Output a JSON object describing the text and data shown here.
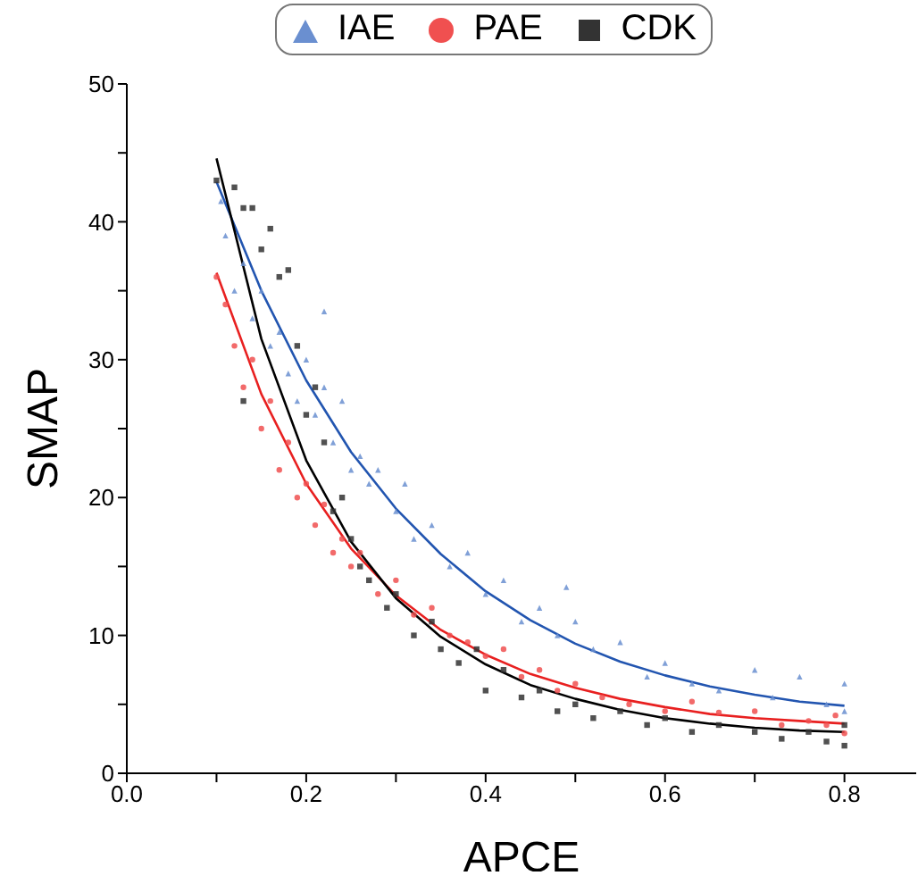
{
  "chart_data": {
    "type": "scatter",
    "xlabel": "APCE",
    "ylabel": "SMAP",
    "xlim": [
      0,
      0.88
    ],
    "ylim": [
      0,
      50
    ],
    "xticks": [
      {
        "value": 0,
        "label": "0.0"
      },
      {
        "value": 0.1,
        "label": null
      },
      0.2,
      {
        "value": 0.3,
        "label": null
      },
      0.4,
      {
        "value": 0.5,
        "label": null
      },
      0.6,
      {
        "value": 0.7,
        "label": null
      },
      0.8
    ],
    "yticks": [
      0,
      {
        "value": 5,
        "label": null
      },
      10,
      {
        "value": 15,
        "label": null
      },
      20,
      {
        "value": 25,
        "label": null
      },
      30,
      {
        "value": 35,
        "label": null
      },
      40,
      {
        "value": 45,
        "label": null
      },
      50
    ],
    "grid": false,
    "legend": "top",
    "series": [
      {
        "name": "IAE",
        "type": "scatter",
        "marker": "triangle",
        "color": "#6a8fd0",
        "x": [
          0.105,
          0.11,
          0.12,
          0.13,
          0.14,
          0.15,
          0.16,
          0.17,
          0.18,
          0.19,
          0.2,
          0.21,
          0.22,
          0.22,
          0.23,
          0.24,
          0.25,
          0.26,
          0.27,
          0.28,
          0.3,
          0.31,
          0.32,
          0.34,
          0.36,
          0.38,
          0.4,
          0.42,
          0.44,
          0.46,
          0.48,
          0.49,
          0.5,
          0.52,
          0.55,
          0.58,
          0.6,
          0.63,
          0.66,
          0.7,
          0.72,
          0.75,
          0.78,
          0.8,
          0.8
        ],
        "values": [
          41.5,
          39,
          35,
          37,
          33,
          35,
          31,
          32,
          29,
          27,
          30,
          26,
          28,
          33.5,
          24,
          27,
          22,
          23,
          21,
          22,
          19,
          21,
          17,
          18,
          15,
          16,
          13,
          14,
          11,
          12,
          10,
          13.5,
          11,
          9,
          9.5,
          7,
          8,
          6.5,
          6,
          7.5,
          5.5,
          7,
          5,
          6.5,
          4.5
        ]
      },
      {
        "name": "PAE",
        "type": "scatter",
        "marker": "circle",
        "color": "#f05050",
        "x": [
          0.1,
          0.11,
          0.12,
          0.13,
          0.14,
          0.15,
          0.16,
          0.17,
          0.18,
          0.19,
          0.2,
          0.21,
          0.22,
          0.23,
          0.24,
          0.25,
          0.26,
          0.28,
          0.3,
          0.32,
          0.34,
          0.36,
          0.38,
          0.4,
          0.42,
          0.44,
          0.46,
          0.48,
          0.5,
          0.53,
          0.56,
          0.6,
          0.63,
          0.66,
          0.7,
          0.73,
          0.76,
          0.78,
          0.79,
          0.8
        ],
        "values": [
          36,
          34,
          31,
          28,
          30,
          25,
          27,
          22,
          24,
          20,
          21,
          18,
          19.5,
          16,
          17,
          15,
          16,
          13,
          14,
          11.5,
          12,
          10,
          9.5,
          8.5,
          9,
          7,
          7.5,
          6,
          6.5,
          5.5,
          5,
          4.5,
          5.2,
          4.4,
          4.5,
          3.5,
          3.8,
          3.5,
          4.2,
          2.9
        ]
      },
      {
        "name": "CDK",
        "type": "scatter",
        "marker": "square",
        "color": "#333333",
        "x": [
          0.1,
          0.12,
          0.13,
          0.13,
          0.14,
          0.15,
          0.16,
          0.17,
          0.18,
          0.19,
          0.2,
          0.21,
          0.22,
          0.23,
          0.24,
          0.25,
          0.26,
          0.27,
          0.29,
          0.3,
          0.32,
          0.34,
          0.35,
          0.37,
          0.39,
          0.4,
          0.42,
          0.44,
          0.46,
          0.48,
          0.5,
          0.52,
          0.55,
          0.58,
          0.6,
          0.63,
          0.66,
          0.7,
          0.73,
          0.76,
          0.78,
          0.8,
          0.8
        ],
        "values": [
          43,
          42.5,
          41,
          27,
          41,
          38,
          39.5,
          36,
          36.5,
          31,
          26,
          28,
          24,
          19,
          20,
          17,
          15,
          14,
          12,
          13,
          10,
          11,
          9,
          8,
          9,
          6,
          7.5,
          5.5,
          6,
          4.5,
          5,
          4,
          4.5,
          3.5,
          4,
          3,
          3.5,
          3,
          2.5,
          3,
          2.3,
          2,
          3.5
        ]
      },
      {
        "type": "line",
        "color": "#2255b0",
        "x": [
          0.1,
          0.15,
          0.2,
          0.25,
          0.3,
          0.35,
          0.4,
          0.45,
          0.5,
          0.55,
          0.6,
          0.65,
          0.7,
          0.75,
          0.8
        ],
        "values": [
          42.9,
          35,
          28.5,
          23.3,
          19.2,
          15.9,
          13.2,
          11.1,
          9.4,
          8.1,
          7.1,
          6.3,
          5.7,
          5.2,
          4.9
        ]
      },
      {
        "type": "line",
        "color": "#e82020",
        "x": [
          0.1,
          0.15,
          0.2,
          0.25,
          0.3,
          0.35,
          0.4,
          0.45,
          0.5,
          0.55,
          0.6,
          0.65,
          0.7,
          0.75,
          0.8
        ],
        "values": [
          36.3,
          27.5,
          21,
          16.3,
          12.9,
          10.4,
          8.6,
          7.2,
          6.2,
          5.4,
          4.8,
          4.3,
          4.0,
          3.8,
          3.6
        ]
      },
      {
        "type": "line",
        "color": "#000000",
        "x": [
          0.1,
          0.15,
          0.2,
          0.25,
          0.3,
          0.35,
          0.4,
          0.45,
          0.5,
          0.55,
          0.6,
          0.65,
          0.7,
          0.75,
          0.8
        ],
        "values": [
          44.6,
          31.5,
          22.7,
          16.8,
          12.7,
          9.9,
          7.9,
          6.4,
          5.4,
          4.6,
          4.0,
          3.6,
          3.3,
          3.1,
          3.0
        ]
      }
    ]
  }
}
